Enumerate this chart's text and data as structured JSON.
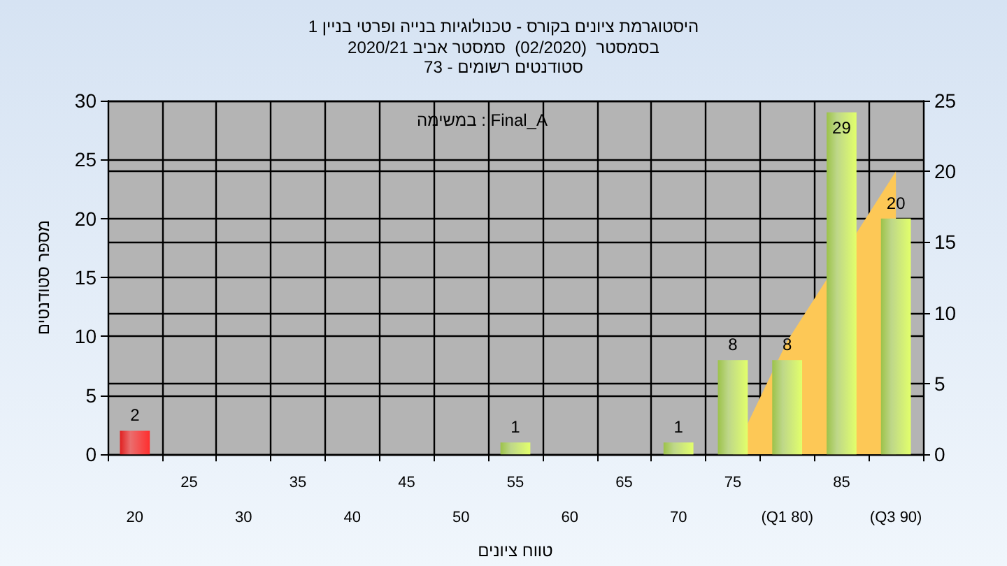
{
  "chart_data": {
    "type": "bar",
    "title": "היסטוגרמת ציונים בקורס - טכנולוגיות בנייה ופרטי בניין 1",
    "subtitle": "בסמסטר  (02/2020)  סמסטר אביב 2020/21\nסטודנטים רשומים - 73",
    "xlabel": "טווח ציונים",
    "ylabel": "מספר סטודנטים",
    "annotations": [
      "במשימה : Final_A"
    ],
    "categories": [
      "20",
      "25",
      "30",
      "35",
      "40",
      "45",
      "50",
      "55",
      "60",
      "65",
      "70",
      "75",
      "(Q1 80)",
      "85",
      "(Q3 90)"
    ],
    "series": [
      {
        "type": "area",
        "axis": "y2",
        "color": "#fdc856",
        "values": [
          null,
          null,
          null,
          null,
          null,
          null,
          null,
          null,
          null,
          null,
          null,
          0,
          8,
          null,
          20
        ]
      },
      {
        "colors": [
          "#e02020",
          "#9cc24a",
          "#9cc24a",
          "#9cc24a",
          "#9cc24a",
          "#9cc24a",
          "#9cc24a",
          "#9cc24a",
          "#9cc24a",
          "#9cc24a",
          "#9cc24a",
          "#9cc24a",
          "#9cc24a",
          "#9cc24a",
          "#9cc24a"
        ],
        "values": [
          2,
          0,
          0,
          0,
          0,
          0,
          0,
          1,
          0,
          0,
          1,
          8,
          8,
          29,
          20
        ],
        "value_labels": [
          "2",
          null,
          null,
          null,
          null,
          null,
          null,
          "1",
          null,
          null,
          "1",
          "8",
          "8",
          "29",
          "20"
        ]
      }
    ],
    "ylim": [
      0,
      30
    ],
    "yticks": [
      0,
      5,
      10,
      15,
      20,
      25,
      30
    ],
    "y2lim": [
      0,
      25
    ],
    "y2ticks": [
      0,
      5,
      10,
      15,
      20,
      25
    ],
    "grid": true
  }
}
